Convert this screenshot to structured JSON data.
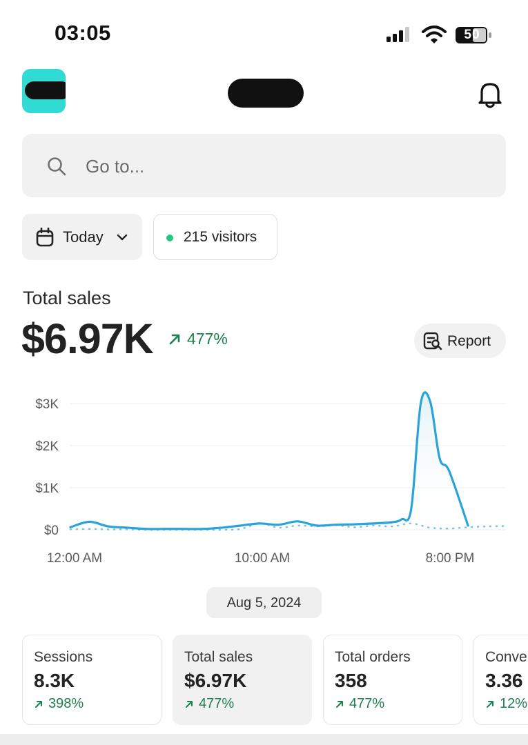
{
  "status_bar": {
    "time": "03:05",
    "battery": "50"
  },
  "search": {
    "placeholder": "Go to..."
  },
  "filters": {
    "date_label": "Today",
    "visitors_label": "215 visitors"
  },
  "summary": {
    "title": "Total sales",
    "value": "$6.97K",
    "change": "477%",
    "report_label": "Report"
  },
  "colors": {
    "accent": "#2fdbd3",
    "line": "#29a3da",
    "positive": "#1e7f4f",
    "live_dot": "#23c77d"
  },
  "chart_data": {
    "type": "line",
    "x_ticks": [
      "12:00 AM",
      "10:00 AM",
      "8:00 PM"
    ],
    "y_ticks": [
      "$3K",
      "$2K",
      "$1K",
      "$0"
    ],
    "ylim": [
      0,
      3000
    ],
    "x_range": [
      0,
      23
    ],
    "series": [
      {
        "style": "solid",
        "x": [
          0,
          1,
          2,
          3,
          4,
          5,
          6,
          7,
          8,
          9,
          10,
          11,
          12,
          13,
          14,
          15,
          16,
          17,
          17.5,
          18,
          18.5,
          19,
          19.5,
          20,
          21
        ],
        "values": [
          60,
          190,
          80,
          50,
          20,
          20,
          20,
          20,
          50,
          100,
          150,
          120,
          200,
          100,
          120,
          130,
          150,
          180,
          250,
          500,
          3000,
          3050,
          1700,
          1400,
          100
        ]
      },
      {
        "style": "dotted",
        "x": [
          0,
          1,
          2,
          3,
          4,
          5,
          6,
          7,
          8,
          9,
          10,
          11,
          12,
          13,
          14,
          15,
          16,
          17,
          18,
          19,
          20,
          21,
          22,
          23
        ],
        "values": [
          10,
          20,
          10,
          10,
          0,
          0,
          0,
          0,
          0,
          20,
          150,
          50,
          100,
          80,
          110,
          60,
          100,
          80,
          150,
          50,
          30,
          60,
          80,
          90
        ]
      }
    ]
  },
  "chart_date": "Aug 5, 2024",
  "metrics": [
    {
      "title": "Sessions",
      "value": "8.3K",
      "change": "398%"
    },
    {
      "title": "Total sales",
      "value": "$6.97K",
      "change": "477%"
    },
    {
      "title": "Total orders",
      "value": "358",
      "change": "477%"
    },
    {
      "title": "Conve",
      "value": "3.36",
      "change": "12%"
    }
  ]
}
